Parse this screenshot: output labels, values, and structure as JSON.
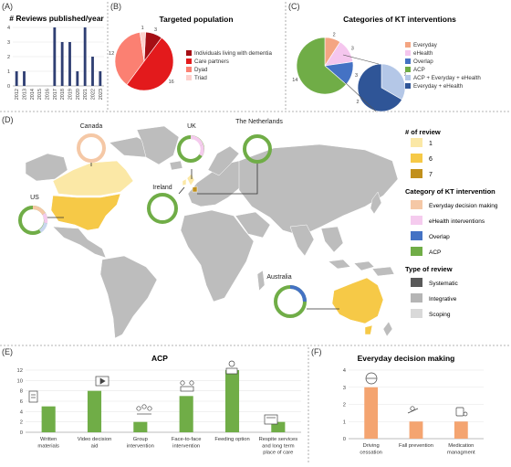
{
  "panel_labels": [
    "(A)",
    "(B)",
    "(C)",
    "(D)",
    "(E)",
    "(F)"
  ],
  "map": {
    "countries": [
      "Canada",
      "UK",
      "The Netherlands",
      "Ireland",
      "US",
      "Australia"
    ],
    "legend": {
      "count_title": "# of review",
      "counts": [
        {
          "label": "1",
          "color": "#fbe8a6"
        },
        {
          "label": "6",
          "color": "#f6c947"
        },
        {
          "label": "7",
          "color": "#c1901c"
        }
      ],
      "category_title": "Category of KT intervention",
      "categories": [
        {
          "label": "Everyday decision making",
          "color": "#f5c8a6"
        },
        {
          "label": "eHealth interventions",
          "color": "#f5cbee"
        },
        {
          "label": "Overlap",
          "color": "#4472c4"
        },
        {
          "label": "ACP",
          "color": "#70ad47"
        }
      ],
      "type_title": "Type of review",
      "types": [
        {
          "label": "Systematic",
          "color": "#595959"
        },
        {
          "label": "Integrative",
          "color": "#b5b5b5"
        },
        {
          "label": "Scoping",
          "color": "#d9d9d9"
        }
      ]
    }
  },
  "chart_data": [
    {
      "type": "bar",
      "title": "# Reviews published/year",
      "categories": [
        "2012",
        "2013",
        "2014",
        "2015",
        "2016",
        "2017",
        "2018",
        "2019",
        "2020",
        "2021",
        "2022",
        "2023"
      ],
      "values": [
        1,
        1,
        0,
        0,
        0,
        4,
        3,
        3,
        1,
        4,
        2,
        1
      ],
      "ylim": [
        0,
        4
      ],
      "yticks": [
        0,
        1,
        2,
        3,
        4
      ],
      "color": "#2f3f73"
    },
    {
      "type": "pie",
      "title": "Targeted population",
      "labels": [
        "Individuals living with dementia",
        "Care partners",
        "Dyad",
        "Triad"
      ],
      "values": [
        3,
        16,
        12,
        1
      ],
      "colors": [
        "#a50f15",
        "#e31a1c",
        "#fb8072",
        "#fdd0cc"
      ],
      "legend": "right"
    },
    {
      "type": "pie",
      "title": "Categories of KT interventions",
      "labels": [
        "Everyday",
        "eHealth",
        "Overlap",
        "ACP"
      ],
      "values": [
        2,
        3,
        3,
        14
      ],
      "colors": [
        "#f4a582",
        "#f5c6ee",
        "#4472c4",
        "#70ad47"
      ],
      "breakout": {
        "labels": [
          "ACP + Everyday + eHealth",
          "Everyday + eHealth"
        ],
        "values": [
          1,
          2
        ],
        "colors": [
          "#b4c7e7",
          "#2f5597"
        ]
      },
      "legend": "right"
    },
    {
      "type": "bar",
      "title": "ACP",
      "categories": [
        "Written materials",
        "Video decision aid",
        "Group intervention",
        "Face-to-face intervention",
        "Feeding option",
        "Respite services and long term place of care"
      ],
      "values": [
        5,
        8,
        2,
        7,
        12,
        2
      ],
      "ylim": [
        0,
        12
      ],
      "yticks": [
        0,
        2,
        4,
        6,
        8,
        10,
        12
      ],
      "color": "#70ad47"
    },
    {
      "type": "bar",
      "title": "Everyday decision making",
      "categories": [
        "Driving cessation",
        "Fall prevention",
        "Medication managment"
      ],
      "values": [
        3,
        1,
        1
      ],
      "ylim": [
        0,
        4
      ],
      "yticks": [
        0,
        1,
        2,
        3,
        4
      ],
      "color": "#f4a470"
    }
  ]
}
